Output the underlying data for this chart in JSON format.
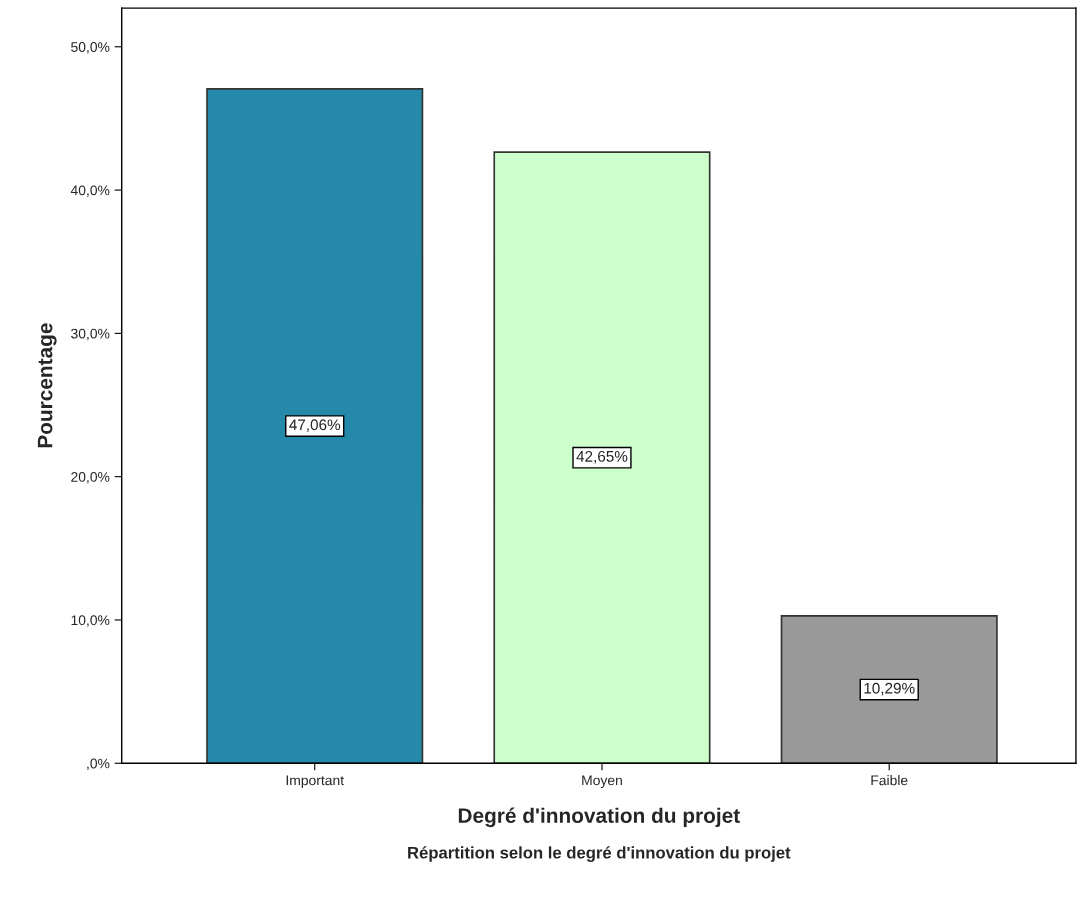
{
  "chart_data": {
    "type": "bar",
    "title": "Répartition selon le degré d'innovation du projet",
    "xlabel": "Degré d'innovation du projet",
    "ylabel": "Pourcentage",
    "categories": [
      "Important",
      "Moyen",
      "Faible"
    ],
    "values": [
      47.06,
      42.65,
      10.29
    ],
    "colors": [
      "#2589a9",
      "#ccffcc",
      "#999999"
    ],
    "value_labels": [
      "47,06%",
      "42,65%",
      "10,29%"
    ],
    "ylim": [
      0,
      52.7
    ],
    "yticks": [
      {
        "value": 0,
        "label": ",0%"
      },
      {
        "value": 10,
        "label": "10,0%"
      },
      {
        "value": 20,
        "label": "20,0%"
      },
      {
        "value": 30,
        "label": "30,0%"
      },
      {
        "value": 40,
        "label": "40,0%"
      },
      {
        "value": 50,
        "label": "50,0%"
      }
    ],
    "grid": false
  }
}
